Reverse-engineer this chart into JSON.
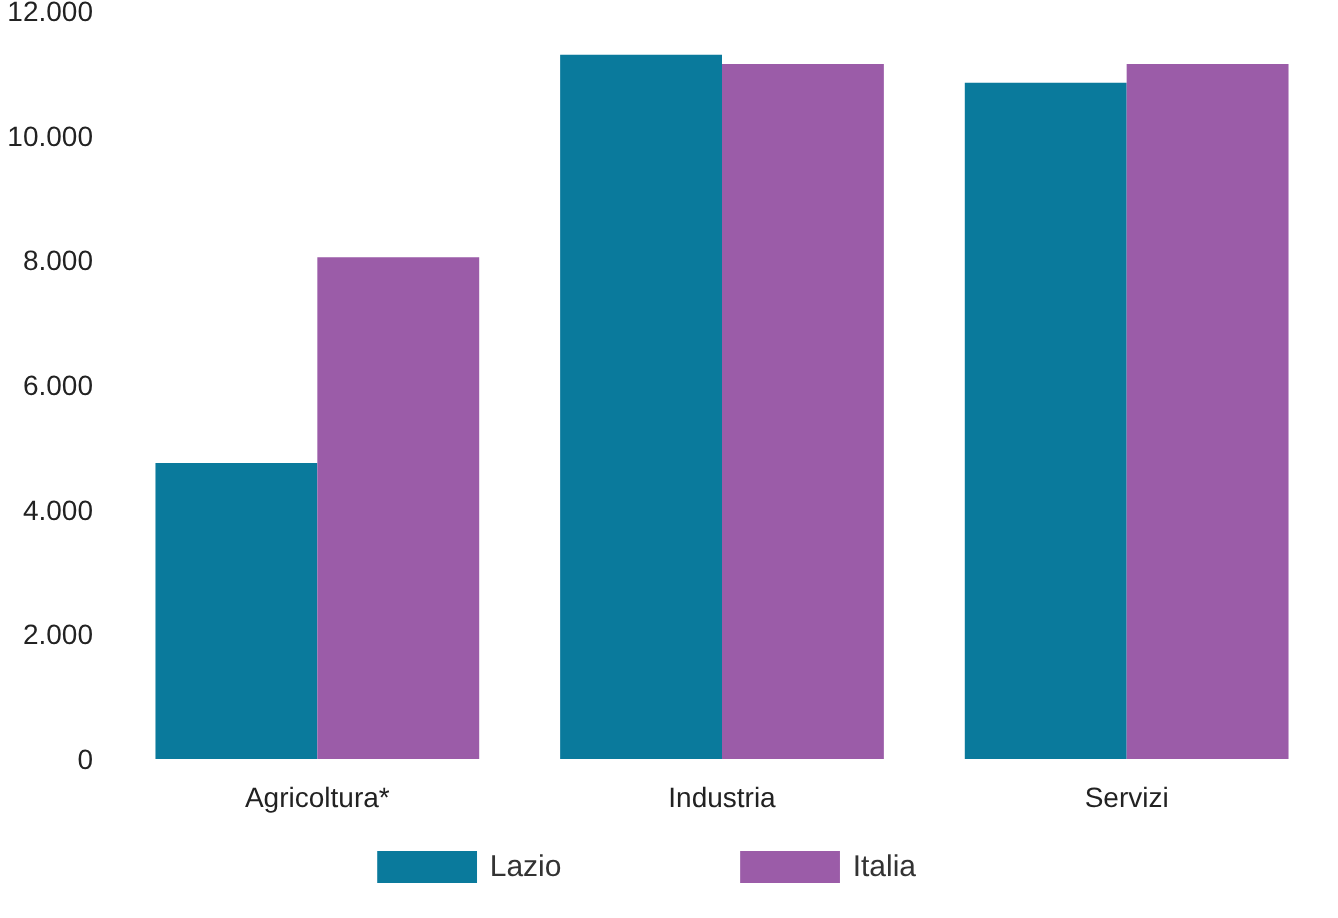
{
  "chart_data": {
    "type": "bar",
    "categories": [
      "Agricoltura*",
      "Industria",
      "Servizi"
    ],
    "series": [
      {
        "name": "Lazio",
        "color": "#0a7a9c",
        "values": [
          4750,
          11300,
          10850
        ]
      },
      {
        "name": "Italia",
        "color": "#9b5ca8",
        "values": [
          8050,
          11150,
          11150
        ]
      }
    ],
    "ylim": [
      0,
      12000
    ],
    "yticks": [
      {
        "value": 0,
        "label": "0"
      },
      {
        "value": 2000,
        "label": "2.000"
      },
      {
        "value": 4000,
        "label": "4.000"
      },
      {
        "value": 6000,
        "label": "6.000"
      },
      {
        "value": 8000,
        "label": "8.000"
      },
      {
        "value": 10000,
        "label": "10.000"
      },
      {
        "value": 12000,
        "label": "12.000"
      }
    ],
    "grid": false,
    "legend": "bottom"
  }
}
